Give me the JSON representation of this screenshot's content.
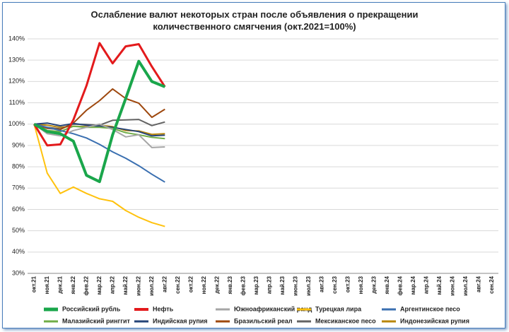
{
  "chart_data": {
    "type": "line",
    "title": "Ослабление валют некоторых стран после объявления о прекращении количественного смягчения  (окт.2021=100%)",
    "categories": [
      "окт.21",
      "ноя.21",
      "дек.21",
      "янв.22",
      "фев.22",
      "мар.22",
      "апр.22",
      "май.22",
      "июн.22",
      "июл.22",
      "авг.22",
      "сен.22",
      "окт.22",
      "ноя.22",
      "дек.22",
      "янв.23",
      "фев.23",
      "мар.23",
      "апр.23",
      "май.23",
      "июн.23",
      "июл.23",
      "авг.23",
      "сен.23",
      "окт.23",
      "ноя.23",
      "дек.23",
      "янв.24",
      "фев.24",
      "мар.24",
      "апр.24",
      "май.24",
      "июн.24",
      "июл.24",
      "авг.24",
      "сен.24"
    ],
    "ylim": [
      30,
      140
    ],
    "yticks": [
      {
        "value": 30,
        "label": "30%"
      },
      {
        "value": 40,
        "label": "40%"
      },
      {
        "value": 50,
        "label": "50%"
      },
      {
        "value": 60,
        "label": "60%"
      },
      {
        "value": 70,
        "label": "70%"
      },
      {
        "value": 80,
        "label": "80%"
      },
      {
        "value": 90,
        "label": "90%"
      },
      {
        "value": 100,
        "label": "100%"
      },
      {
        "value": 110,
        "label": "110%"
      },
      {
        "value": 120,
        "label": "120%"
      },
      {
        "value": 130,
        "label": "130%"
      },
      {
        "value": 140,
        "label": "140%"
      }
    ],
    "grid": true,
    "legend": "bottom",
    "series": [
      {
        "name": "Российский рубль",
        "color": "#1aa64b",
        "width": 4,
        "values": [
          100,
          96.5,
          95.5,
          92,
          76,
          73,
          95,
          112,
          129.5,
          120,
          117.5,
          null,
          null,
          null,
          null,
          null,
          null,
          null,
          null,
          null,
          null,
          null,
          null,
          null,
          null,
          null,
          null,
          null,
          null,
          null,
          null,
          null,
          null,
          null,
          null,
          null
        ]
      },
      {
        "name": "Нефть",
        "color": "#e31a1c",
        "width": 3,
        "values": [
          100,
          90,
          90.5,
          102,
          118,
          138,
          128.5,
          136.5,
          137.5,
          127,
          117.5,
          null,
          null,
          null,
          null,
          null,
          null,
          null,
          null,
          null,
          null,
          null,
          null,
          null,
          null,
          null,
          null,
          null,
          null,
          null,
          null,
          null,
          null,
          null,
          null,
          null
        ]
      },
      {
        "name": "Южноафриканский ранд",
        "color": "#a6a6a6",
        "width": 2,
        "values": [
          100,
          95.5,
          94.5,
          97,
          98.5,
          100,
          97.5,
          94,
          95,
          89,
          89.3,
          null,
          null,
          null,
          null,
          null,
          null,
          null,
          null,
          null,
          null,
          null,
          null,
          null,
          null,
          null,
          null,
          null,
          null,
          null,
          null,
          null,
          null,
          null,
          null,
          null
        ]
      },
      {
        "name": "Турецкая лира",
        "color": "#ffc20e",
        "width": 2,
        "values": [
          100,
          77,
          67.5,
          70.5,
          67.5,
          65,
          63.8,
          59.5,
          56.3,
          53.8,
          52,
          null,
          null,
          null,
          null,
          null,
          null,
          null,
          null,
          null,
          null,
          null,
          null,
          null,
          null,
          null,
          null,
          null,
          null,
          null,
          null,
          null,
          null,
          null,
          null,
          null
        ]
      },
      {
        "name": "Аргентинское песо",
        "color": "#3a6fb0",
        "width": 2,
        "values": [
          100,
          98.5,
          97,
          95.5,
          93.5,
          90.5,
          87,
          84,
          80.5,
          76.5,
          72.8,
          null,
          null,
          null,
          null,
          null,
          null,
          null,
          null,
          null,
          null,
          null,
          null,
          null,
          null,
          null,
          null,
          null,
          null,
          null,
          null,
          null,
          null,
          null,
          null,
          null
        ]
      },
      {
        "name": "Малазийский ринггит",
        "color": "#70ad47",
        "width": 2,
        "values": [
          100,
          97,
          96.5,
          99,
          98.5,
          98.5,
          98,
          96,
          95,
          93.8,
          93.2,
          null,
          null,
          null,
          null,
          null,
          null,
          null,
          null,
          null,
          null,
          null,
          null,
          null,
          null,
          null,
          null,
          null,
          null,
          null,
          null,
          null,
          null,
          null,
          null,
          null
        ]
      },
      {
        "name": "Индийская рупия",
        "color": "#264478",
        "width": 2,
        "values": [
          100,
          100.5,
          99.2,
          100.3,
          99.5,
          99,
          98.5,
          97.5,
          96.5,
          94.5,
          94.8,
          null,
          null,
          null,
          null,
          null,
          null,
          null,
          null,
          null,
          null,
          null,
          null,
          null,
          null,
          null,
          null,
          null,
          null,
          null,
          null,
          null,
          null,
          null,
          null,
          null
        ]
      },
      {
        "name": "Бразильский реал",
        "color": "#9e480e",
        "width": 2,
        "values": [
          100,
          98,
          97.5,
          100.5,
          106.5,
          111,
          116.5,
          112,
          109.8,
          103.2,
          107,
          null,
          null,
          null,
          null,
          null,
          null,
          null,
          null,
          null,
          null,
          null,
          null,
          null,
          null,
          null,
          null,
          null,
          null,
          null,
          null,
          null,
          null,
          null,
          null,
          null
        ]
      },
      {
        "name": "Мексиканское песо",
        "color": "#636363",
        "width": 2,
        "values": [
          100,
          98.5,
          97.8,
          100,
          99.8,
          99.5,
          101.8,
          102,
          102.2,
          99.3,
          101,
          null,
          null,
          null,
          null,
          null,
          null,
          null,
          null,
          null,
          null,
          null,
          null,
          null,
          null,
          null,
          null,
          null,
          null,
          null,
          null,
          null,
          null,
          null,
          null,
          null
        ]
      },
      {
        "name": "Индонезийская рупия",
        "color": "#b8860b",
        "width": 2,
        "values": [
          100,
          99.5,
          98.5,
          99,
          98.8,
          99.5,
          98.8,
          97,
          96.8,
          95.2,
          95.5,
          null,
          null,
          null,
          null,
          null,
          null,
          null,
          null,
          null,
          null,
          null,
          null,
          null,
          null,
          null,
          null,
          null,
          null,
          null,
          null,
          null,
          null,
          null,
          null,
          null
        ]
      }
    ]
  }
}
